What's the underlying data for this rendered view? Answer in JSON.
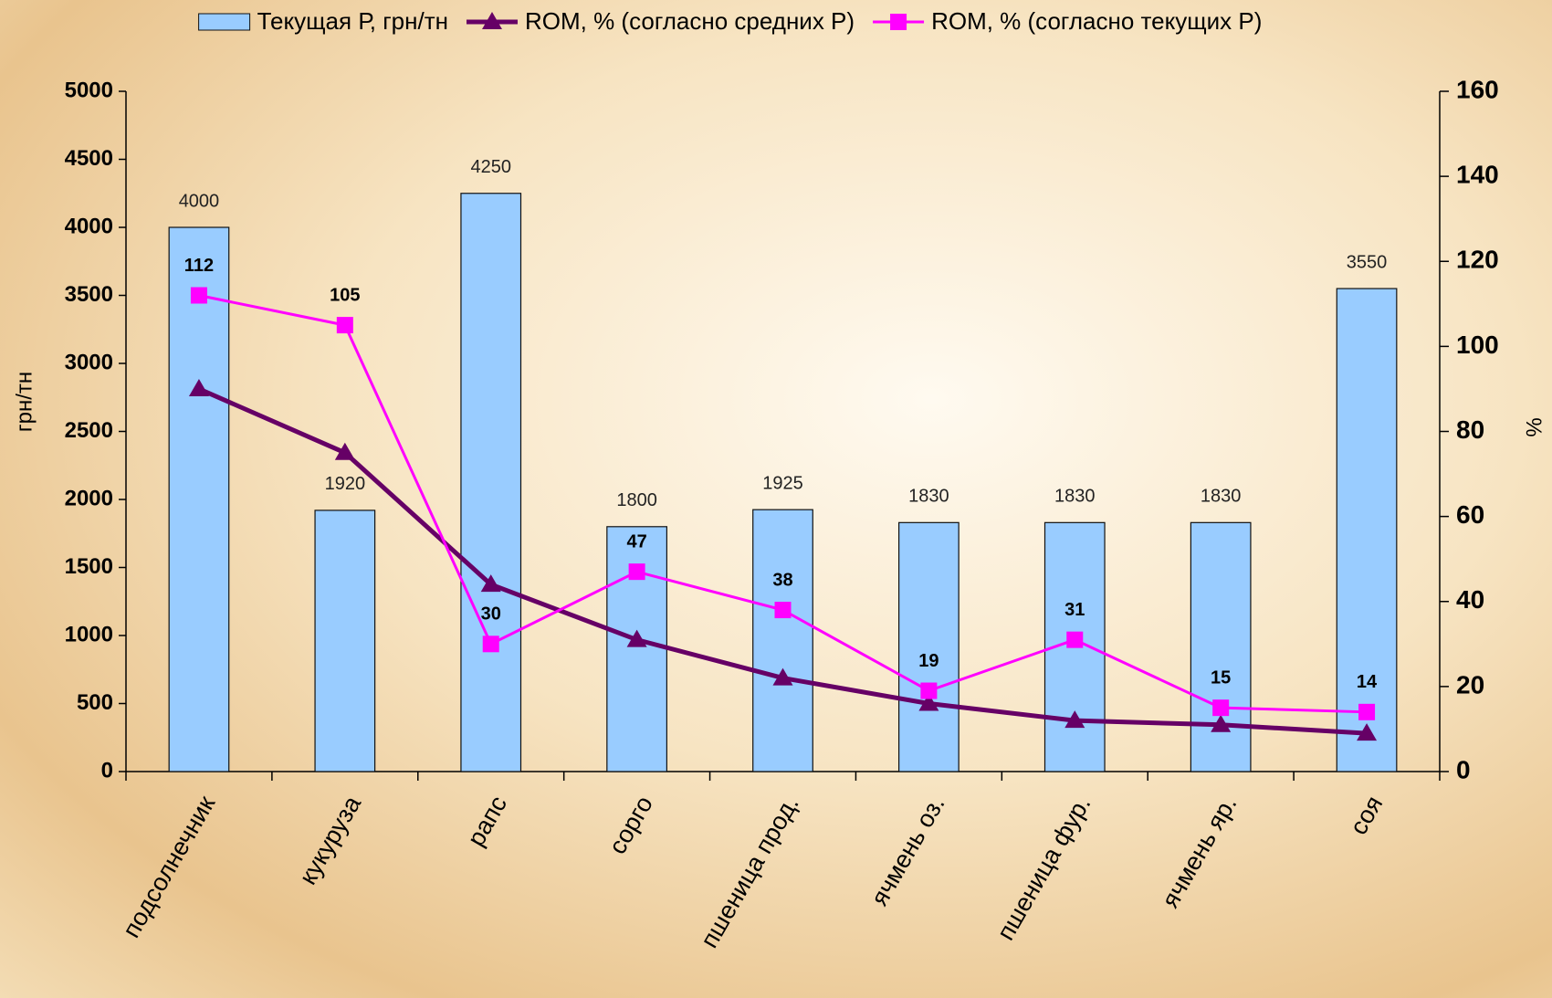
{
  "chart_data": {
    "type": "bar",
    "categories": [
      "подсолнечник",
      "кукуруза",
      "рапс",
      "сорго",
      "пшеница прод.",
      "ячмень оз.",
      "пшеница фур.",
      "ячмень яр.",
      "соя"
    ],
    "y_label": "грн/тн",
    "y2_label": "%",
    "ylim": [
      0,
      5000
    ],
    "yticks": [
      0,
      500,
      1000,
      1500,
      2000,
      2500,
      3000,
      3500,
      4000,
      4500,
      5000
    ],
    "y2lim": [
      0,
      160
    ],
    "y2ticks": [
      0,
      20,
      40,
      60,
      80,
      100,
      120,
      140,
      160
    ],
    "legend": "top",
    "series": [
      {
        "name": "Текущая Р, грн/тн",
        "type": "bar",
        "color": "#99ccff",
        "show_labels": true,
        "values": [
          4000,
          1920,
          4250,
          1800,
          1925,
          1830,
          1830,
          1830,
          3550
        ]
      },
      {
        "name": "ROM, % (согласно средних Р)",
        "type": "line",
        "marker": "triangle",
        "axis": "y2",
        "color": "#660066",
        "show_labels": false,
        "values": [
          90,
          75,
          44,
          31,
          22,
          16,
          12,
          11,
          9
        ]
      },
      {
        "name": "ROM, % (согласно текущих Р)",
        "type": "line",
        "marker": "square",
        "axis": "y2",
        "color": "#ff00ff",
        "show_labels": true,
        "values": [
          112,
          105,
          30,
          47,
          38,
          19,
          31,
          15,
          14
        ]
      }
    ]
  }
}
